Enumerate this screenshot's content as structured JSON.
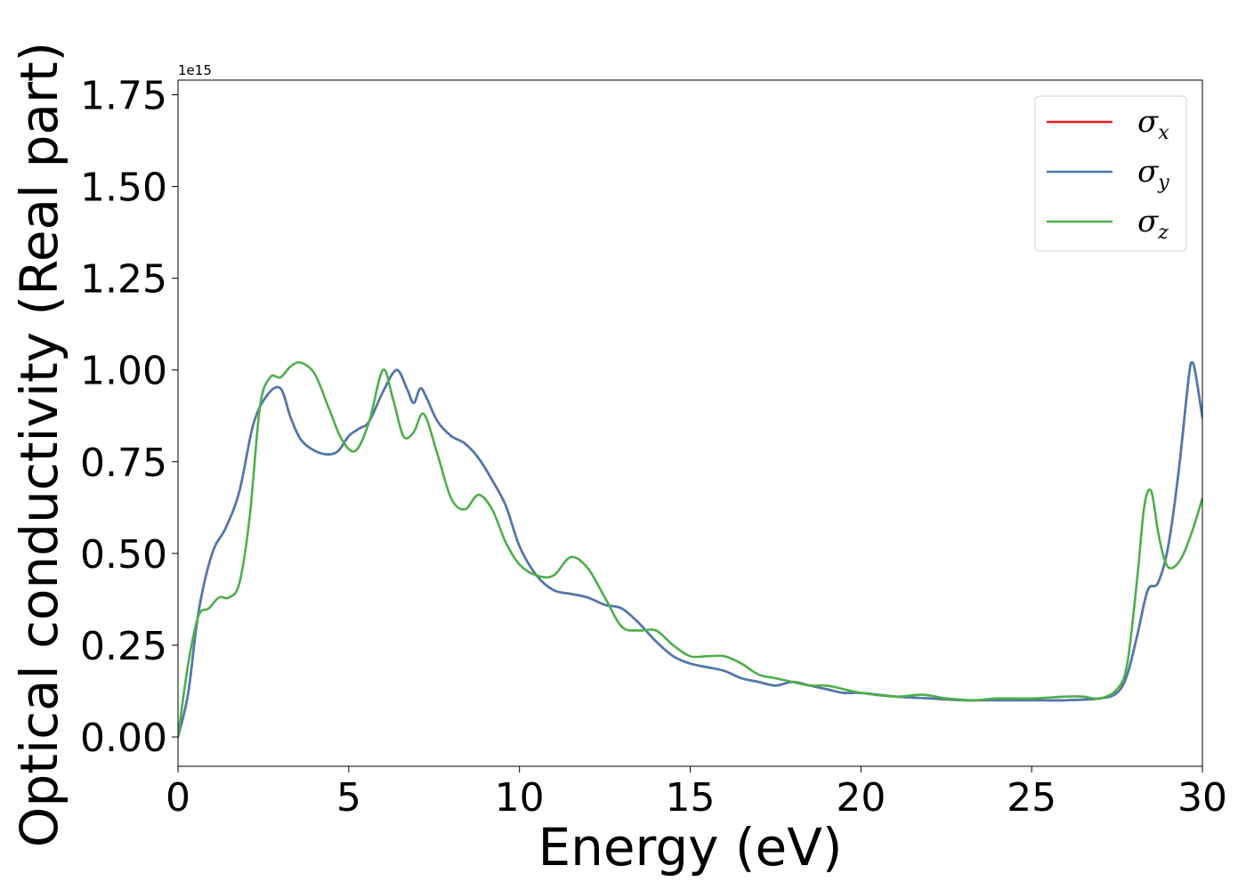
{
  "chart_data": {
    "type": "line",
    "title": "",
    "xlabel": "Energy (eV)",
    "ylabel": "Optical conductivity (Real part)",
    "y_offset_label": "1e15",
    "xlim": [
      0,
      30
    ],
    "ylim": [
      -0.08,
      1.79
    ],
    "x_ticks": [
      0,
      5,
      10,
      15,
      20,
      25,
      30
    ],
    "x_tick_labels": [
      "0",
      "5",
      "10",
      "15",
      "20",
      "25",
      "30"
    ],
    "y_ticks": [
      0.0,
      0.25,
      0.5,
      0.75,
      1.0,
      1.25,
      1.5,
      1.75
    ],
    "y_tick_labels": [
      "0.00",
      "0.25",
      "0.50",
      "0.75",
      "1.00",
      "1.25",
      "1.50",
      "1.75"
    ],
    "grid": false,
    "legend_position": "upper right",
    "series": [
      {
        "name": "σ",
        "subscript": "x",
        "color": "#e41a1c",
        "x": [
          0,
          0.3,
          0.6,
          1.0,
          1.4,
          1.8,
          2.2,
          2.6,
          3.0,
          3.3,
          3.6,
          4.0,
          4.4,
          4.7,
          5.0,
          5.3,
          5.6,
          6.0,
          6.4,
          6.7,
          6.9,
          7.1,
          7.3,
          7.6,
          8.0,
          8.4,
          8.8,
          9.2,
          9.6,
          10.0,
          10.5,
          11.0,
          11.5,
          12.0,
          12.5,
          13.0,
          13.5,
          14.0,
          14.5,
          15.0,
          15.5,
          16.0,
          16.5,
          17.0,
          17.5,
          18.0,
          18.5,
          19.0,
          19.5,
          20.0,
          21.0,
          22.0,
          23.0,
          24.0,
          25.0,
          26.0,
          27.0,
          27.5,
          27.8,
          28.1,
          28.4,
          28.7,
          29.0,
          29.3,
          29.6,
          29.7,
          29.8,
          30.0
        ],
        "y": [
          0.0,
          0.12,
          0.34,
          0.5,
          0.57,
          0.67,
          0.85,
          0.93,
          0.95,
          0.87,
          0.81,
          0.78,
          0.77,
          0.78,
          0.82,
          0.84,
          0.86,
          0.94,
          1.0,
          0.95,
          0.91,
          0.95,
          0.92,
          0.86,
          0.82,
          0.8,
          0.76,
          0.7,
          0.63,
          0.52,
          0.44,
          0.4,
          0.39,
          0.38,
          0.36,
          0.35,
          0.31,
          0.26,
          0.22,
          0.2,
          0.19,
          0.18,
          0.16,
          0.15,
          0.14,
          0.15,
          0.14,
          0.13,
          0.12,
          0.12,
          0.11,
          0.105,
          0.1,
          0.1,
          0.1,
          0.1,
          0.105,
          0.12,
          0.17,
          0.28,
          0.4,
          0.42,
          0.52,
          0.72,
          0.98,
          1.02,
          0.99,
          0.87
        ]
      },
      {
        "name": "σ",
        "subscript": "y",
        "color": "#4a7bb0",
        "x": [
          0,
          0.3,
          0.6,
          1.0,
          1.4,
          1.8,
          2.2,
          2.6,
          3.0,
          3.3,
          3.6,
          4.0,
          4.4,
          4.7,
          5.0,
          5.3,
          5.6,
          6.0,
          6.4,
          6.7,
          6.9,
          7.1,
          7.3,
          7.6,
          8.0,
          8.4,
          8.8,
          9.2,
          9.6,
          10.0,
          10.5,
          11.0,
          11.5,
          12.0,
          12.5,
          13.0,
          13.5,
          14.0,
          14.5,
          15.0,
          15.5,
          16.0,
          16.5,
          17.0,
          17.5,
          18.0,
          18.5,
          19.0,
          19.5,
          20.0,
          21.0,
          22.0,
          23.0,
          24.0,
          25.0,
          26.0,
          27.0,
          27.5,
          27.8,
          28.1,
          28.4,
          28.7,
          29.0,
          29.3,
          29.6,
          29.7,
          29.8,
          30.0
        ],
        "y": [
          0.0,
          0.12,
          0.34,
          0.5,
          0.57,
          0.67,
          0.85,
          0.93,
          0.95,
          0.87,
          0.81,
          0.78,
          0.77,
          0.78,
          0.82,
          0.84,
          0.86,
          0.94,
          1.0,
          0.95,
          0.91,
          0.95,
          0.92,
          0.86,
          0.82,
          0.8,
          0.76,
          0.7,
          0.63,
          0.52,
          0.44,
          0.4,
          0.39,
          0.38,
          0.36,
          0.35,
          0.31,
          0.26,
          0.22,
          0.2,
          0.19,
          0.18,
          0.16,
          0.15,
          0.14,
          0.15,
          0.14,
          0.13,
          0.12,
          0.12,
          0.11,
          0.105,
          0.1,
          0.1,
          0.1,
          0.1,
          0.105,
          0.12,
          0.17,
          0.28,
          0.4,
          0.42,
          0.52,
          0.72,
          0.98,
          1.02,
          0.99,
          0.87
        ]
      },
      {
        "name": "σ",
        "subscript": "z",
        "color": "#4daf4a",
        "x": [
          0,
          0.3,
          0.6,
          0.9,
          1.2,
          1.5,
          1.8,
          2.1,
          2.4,
          2.7,
          3.0,
          3.3,
          3.6,
          4.0,
          4.4,
          4.8,
          5.2,
          5.6,
          6.0,
          6.3,
          6.6,
          6.9,
          7.2,
          7.6,
          8.0,
          8.4,
          8.8,
          9.2,
          9.6,
          10.0,
          10.5,
          11.0,
          11.5,
          12.0,
          12.5,
          13.0,
          13.5,
          14.0,
          14.5,
          15.0,
          15.5,
          16.0,
          16.5,
          17.0,
          17.5,
          18.0,
          18.5,
          19.0,
          19.5,
          20.0,
          21.0,
          21.8,
          22.5,
          23.3,
          24.0,
          25.0,
          26.0,
          26.5,
          27.0,
          27.5,
          27.8,
          28.1,
          28.3,
          28.5,
          28.7,
          28.9,
          29.1,
          29.4,
          29.7,
          30.0
        ],
        "y": [
          0.0,
          0.2,
          0.33,
          0.35,
          0.38,
          0.38,
          0.42,
          0.6,
          0.9,
          0.98,
          0.98,
          1.01,
          1.02,
          0.99,
          0.9,
          0.81,
          0.78,
          0.86,
          1.0,
          0.92,
          0.82,
          0.83,
          0.88,
          0.77,
          0.65,
          0.62,
          0.66,
          0.62,
          0.53,
          0.47,
          0.44,
          0.44,
          0.49,
          0.46,
          0.38,
          0.3,
          0.29,
          0.29,
          0.25,
          0.22,
          0.22,
          0.22,
          0.2,
          0.17,
          0.16,
          0.15,
          0.14,
          0.14,
          0.13,
          0.12,
          0.11,
          0.115,
          0.105,
          0.1,
          0.105,
          0.105,
          0.11,
          0.11,
          0.105,
          0.13,
          0.2,
          0.44,
          0.63,
          0.67,
          0.56,
          0.48,
          0.46,
          0.49,
          0.56,
          0.65
        ]
      }
    ]
  }
}
